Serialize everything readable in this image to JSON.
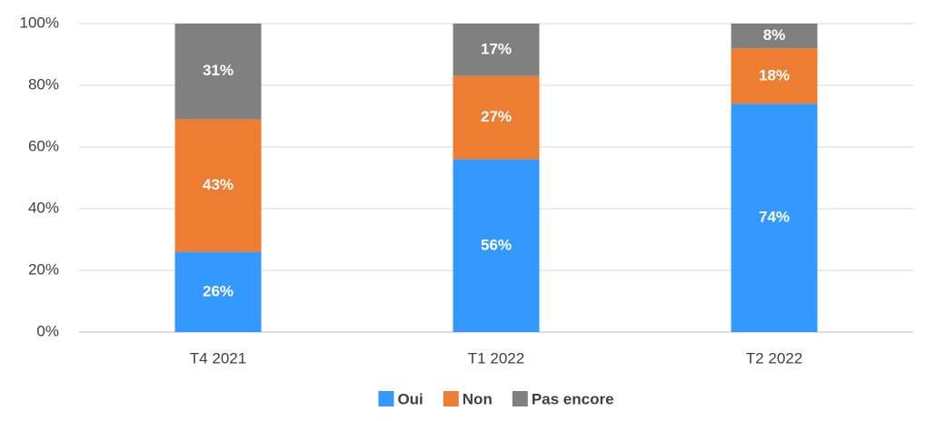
{
  "chart_data": {
    "type": "stacked_bar",
    "categories": [
      "T4 2021",
      "T1 2022",
      "T2 2022"
    ],
    "series": [
      {
        "name": "Oui",
        "color": "#3399ff",
        "values": [
          26,
          56,
          74
        ],
        "value_labels": [
          "26%",
          "56%",
          "74%"
        ]
      },
      {
        "name": "Non",
        "color": "#ed7d31",
        "values": [
          43,
          27,
          18
        ],
        "value_labels": [
          "43%",
          "27%",
          "18%"
        ]
      },
      {
        "name": "Pas encore",
        "color": "#808080",
        "values": [
          31,
          17,
          8
        ],
        "value_labels": [
          "31%",
          "17%",
          "8%"
        ]
      }
    ],
    "ylim": [
      0,
      100
    ],
    "yticks": [
      {
        "value": 0,
        "label": "0%"
      },
      {
        "value": 20,
        "label": "20%"
      },
      {
        "value": 40,
        "label": "40%"
      },
      {
        "value": 60,
        "label": "60%"
      },
      {
        "value": 80,
        "label": "80%"
      },
      {
        "value": 100,
        "label": "100%"
      }
    ],
    "grid": true,
    "legend": "bottom"
  }
}
